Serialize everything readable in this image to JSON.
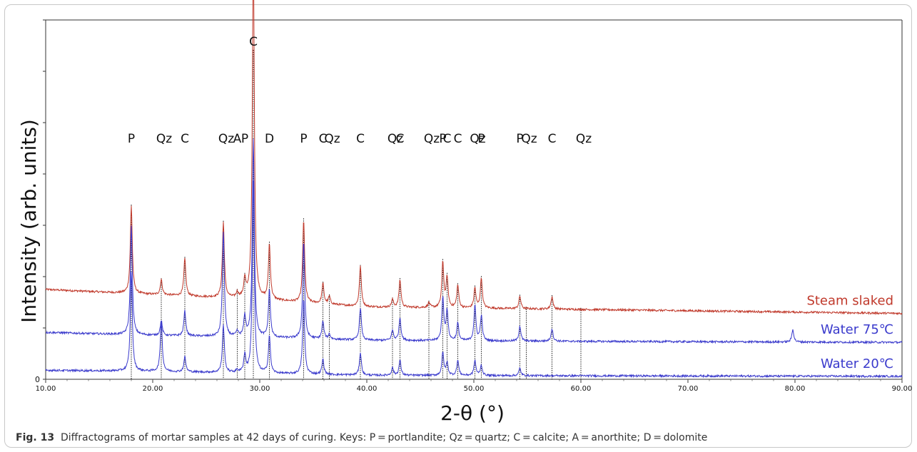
{
  "figure": {
    "label": "Fig. 13",
    "text": "Diffractograms of mortar samples at 42 days of curing. Keys: P = portlandite; Qz = quartz; C = calcite; A = anorthite; D = dolomite"
  },
  "chart_data": {
    "type": "line",
    "xlabel": "2-θ (°)",
    "ylabel": "Intensity (arb. units)",
    "xlim": [
      10,
      90
    ],
    "x_ticks": [
      "10.00",
      "20.00",
      "30.00",
      "40.00",
      "50.00",
      "60.00",
      "70.00",
      "80.00",
      "90.00"
    ],
    "y_ticks": [
      "0"
    ],
    "grid": false,
    "legend": "none",
    "series": [
      {
        "name": "Steam slaked",
        "color": "#c0392b",
        "baseline": [
          [
            10,
            180
          ],
          [
            20,
            170
          ],
          [
            30,
            160
          ],
          [
            40,
            145
          ],
          [
            60,
            140
          ],
          [
            90,
            132
          ]
        ],
        "peaks": [
          [
            18.0,
            175
          ],
          [
            20.8,
            30
          ],
          [
            23.0,
            75
          ],
          [
            26.6,
            150
          ],
          [
            27.9,
            10
          ],
          [
            28.6,
            35
          ],
          [
            29.4,
            695
          ],
          [
            30.9,
            110
          ],
          [
            34.1,
            165
          ],
          [
            35.9,
            40
          ],
          [
            36.5,
            15
          ],
          [
            39.4,
            80
          ],
          [
            42.4,
            15
          ],
          [
            43.1,
            55
          ],
          [
            45.8,
            10
          ],
          [
            47.1,
            90
          ],
          [
            47.5,
            60
          ],
          [
            48.5,
            45
          ],
          [
            50.1,
            40
          ],
          [
            50.7,
            60
          ],
          [
            54.3,
            25
          ],
          [
            57.3,
            25
          ]
        ]
      },
      {
        "name": "Water 75℃",
        "color": "#3a3acc",
        "baseline": [
          [
            10,
            94
          ],
          [
            20,
            88
          ],
          [
            30,
            84
          ],
          [
            40,
            78
          ],
          [
            60,
            76
          ],
          [
            90,
            74
          ]
        ],
        "peaks": [
          [
            18.0,
            220
          ],
          [
            20.8,
            30
          ],
          [
            23.0,
            50
          ],
          [
            26.6,
            210
          ],
          [
            27.9,
            10
          ],
          [
            28.6,
            40
          ],
          [
            29.4,
            395
          ],
          [
            30.9,
            95
          ],
          [
            34.1,
            195
          ],
          [
            35.9,
            35
          ],
          [
            36.5,
            10
          ],
          [
            39.4,
            65
          ],
          [
            42.4,
            20
          ],
          [
            43.1,
            45
          ],
          [
            47.1,
            85
          ],
          [
            47.5,
            60
          ],
          [
            48.5,
            35
          ],
          [
            50.1,
            70
          ],
          [
            50.7,
            50
          ],
          [
            54.3,
            30
          ],
          [
            57.3,
            25
          ],
          [
            79.8,
            25
          ]
        ]
      },
      {
        "name": "Water 20℃",
        "color": "#3a3acc",
        "baseline": [
          [
            10,
            18
          ],
          [
            20,
            16
          ],
          [
            30,
            12
          ],
          [
            40,
            8
          ],
          [
            60,
            7
          ],
          [
            90,
            6
          ]
        ],
        "peaks": [
          [
            18.0,
            200
          ],
          [
            20.8,
            100
          ],
          [
            23.0,
            30
          ],
          [
            26.6,
            95
          ],
          [
            27.9,
            5
          ],
          [
            28.6,
            35
          ],
          [
            29.4,
            385
          ],
          [
            30.9,
            75
          ],
          [
            34.1,
            150
          ],
          [
            35.9,
            30
          ],
          [
            39.4,
            45
          ],
          [
            42.4,
            15
          ],
          [
            43.1,
            30
          ],
          [
            47.1,
            45
          ],
          [
            47.5,
            25
          ],
          [
            48.5,
            30
          ],
          [
            50.1,
            30
          ],
          [
            50.7,
            20
          ],
          [
            54.3,
            15
          ]
        ]
      }
    ],
    "reference_lines": [
      {
        "x": 18.0,
        "label": "P"
      },
      {
        "x": 20.8,
        "label": "Qz"
      },
      {
        "x": 23.0,
        "label": "C"
      },
      {
        "x": 26.6,
        "label": "Qz"
      },
      {
        "x": 27.9,
        "label": "A"
      },
      {
        "x": 28.6,
        "label": "P"
      },
      {
        "x": 29.4,
        "label": "C"
      },
      {
        "x": 30.9,
        "label": "D"
      },
      {
        "x": 34.1,
        "label": "P"
      },
      {
        "x": 35.9,
        "label": "C"
      },
      {
        "x": 36.5,
        "label": "Qz"
      },
      {
        "x": 39.4,
        "label": "C"
      },
      {
        "x": 42.4,
        "label": "Qz"
      },
      {
        "x": 43.1,
        "label": "C"
      },
      {
        "x": 45.8,
        "label": "Qz"
      },
      {
        "x": 47.1,
        "label": "P"
      },
      {
        "x": 47.5,
        "label": "C"
      },
      {
        "x": 48.5,
        "label": "C"
      },
      {
        "x": 50.1,
        "label": "Qz"
      },
      {
        "x": 50.7,
        "label": "P"
      },
      {
        "x": 54.3,
        "label": "P"
      },
      {
        "x": 54.9,
        "label": "Qz"
      },
      {
        "x": 57.3,
        "label": "C"
      },
      {
        "x": 60.0,
        "label": "Qz"
      }
    ]
  }
}
